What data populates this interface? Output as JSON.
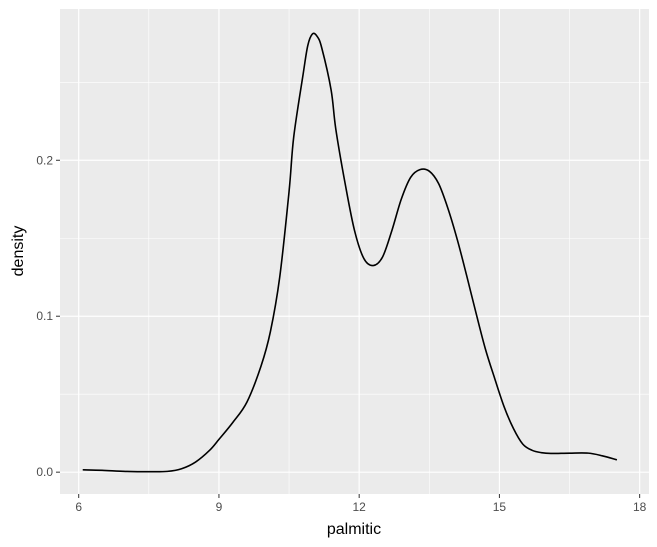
{
  "chart_data": {
    "type": "area",
    "xlabel": "palmitic",
    "ylabel": "density",
    "xlim": [
      5.6,
      18.2
    ],
    "ylim": [
      -0.014,
      0.297
    ],
    "x_ticks": [
      6,
      9,
      12,
      15,
      18
    ],
    "x_tick_labels": [
      "6",
      "9",
      "12",
      "15",
      "18"
    ],
    "y_ticks": [
      0.0,
      0.1,
      0.2
    ],
    "y_tick_labels": [
      "0.0",
      "0.1",
      "0.2"
    ],
    "grid": true,
    "colors": {
      "panel": "#EBEBEB",
      "grid": "#FFFFFF",
      "line": "#000000",
      "tick_text": "#4D4D4D",
      "tick_mark": "#333333",
      "background": "#FFFFFF"
    },
    "series": [
      {
        "x": [
          6.1,
          6.5,
          7.0,
          7.5,
          7.9,
          8.2,
          8.5,
          8.8,
          9.0,
          9.3,
          9.6,
          9.9,
          10.1,
          10.3,
          10.5,
          10.6,
          10.8,
          10.9,
          11.0,
          11.1,
          11.2,
          11.4,
          11.5,
          11.7,
          11.9,
          12.1,
          12.3,
          12.5,
          12.7,
          12.9,
          13.1,
          13.3,
          13.5,
          13.7,
          13.9,
          14.1,
          14.3,
          14.5,
          14.7,
          14.9,
          15.1,
          15.3,
          15.5,
          15.7,
          15.9,
          16.1,
          16.5,
          16.9,
          17.2,
          17.5
        ],
        "y": [
          0.0015,
          0.0012,
          0.0005,
          0.0003,
          0.0005,
          0.0022,
          0.0065,
          0.014,
          0.021,
          0.032,
          0.045,
          0.068,
          0.09,
          0.125,
          0.18,
          0.215,
          0.255,
          0.2735,
          0.281,
          0.2795,
          0.272,
          0.245,
          0.22,
          0.185,
          0.155,
          0.137,
          0.1325,
          0.138,
          0.155,
          0.175,
          0.189,
          0.194,
          0.193,
          0.185,
          0.169,
          0.149,
          0.126,
          0.102,
          0.079,
          0.06,
          0.042,
          0.028,
          0.018,
          0.014,
          0.0125,
          0.012,
          0.0122,
          0.0122,
          0.0105,
          0.008
        ]
      }
    ]
  }
}
